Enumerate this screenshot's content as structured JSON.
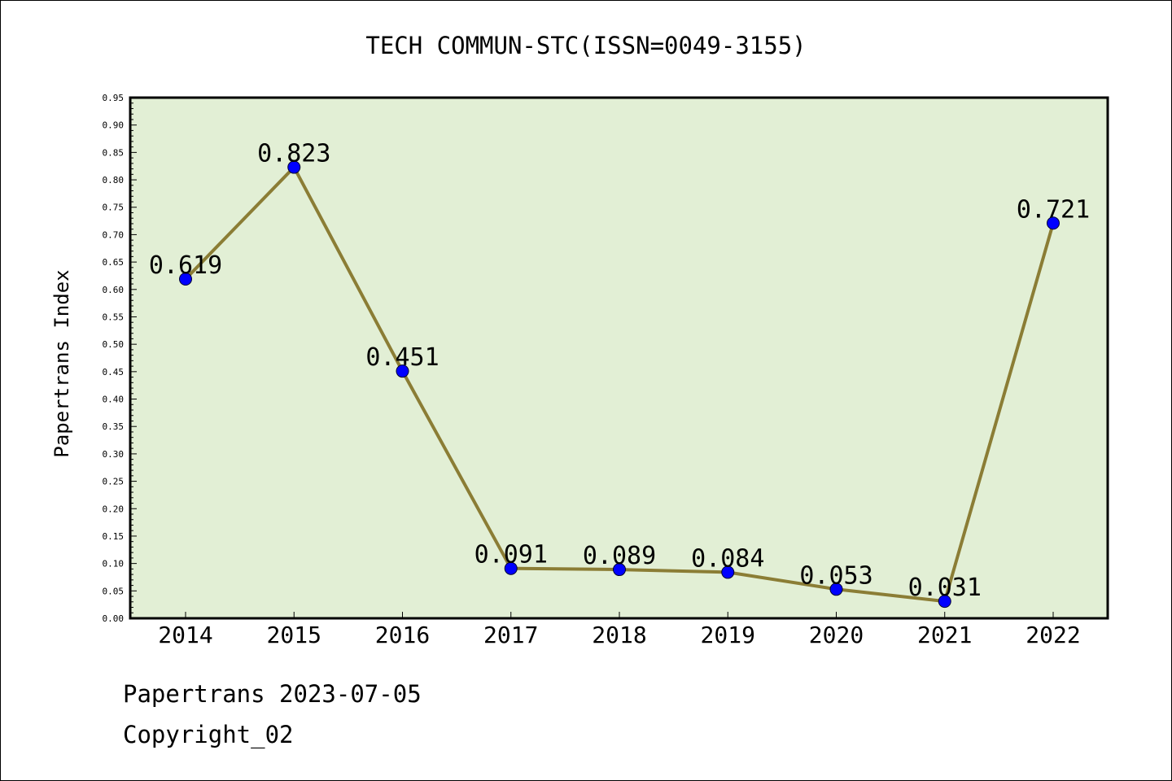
{
  "chart_data": {
    "type": "line",
    "title": "TECH COMMUN-STC(ISSN=0049-3155)",
    "xlabel": "",
    "ylabel": "Papertrans Index",
    "categories": [
      "2014",
      "2015",
      "2016",
      "2017",
      "2018",
      "2019",
      "2020",
      "2021",
      "2022"
    ],
    "values": [
      0.619,
      0.823,
      0.451,
      0.091,
      0.089,
      0.084,
      0.053,
      0.031,
      0.721
    ],
    "value_labels": [
      "0.619",
      "0.823",
      "0.451",
      "0.091",
      "0.089",
      "0.084",
      "0.053",
      "0.031",
      "0.721"
    ],
    "ylim": [
      0,
      0.95
    ],
    "y_ticks": [
      "0.00",
      "0.05",
      "0.10",
      "0.15",
      "0.20",
      "0.25",
      "0.30",
      "0.35",
      "0.40",
      "0.45",
      "0.50",
      "0.55",
      "0.60",
      "0.65",
      "0.70",
      "0.75",
      "0.80",
      "0.85",
      "0.90",
      "0.95"
    ],
    "grid": false,
    "legend": "none",
    "colors": {
      "plot_background": "#e2efd5",
      "line": "#8b7d35",
      "marker": "#0000ff"
    }
  },
  "footer": {
    "line1": "Papertrans 2023-07-05",
    "line2": "Copyright_02"
  }
}
